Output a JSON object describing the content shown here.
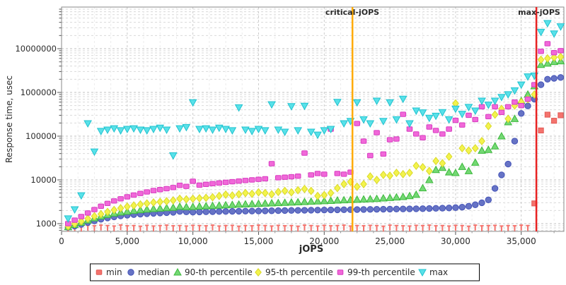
{
  "axes": {
    "x": {
      "label": "jOPS",
      "ticks": [
        "0",
        "5,000",
        "10,000",
        "15,000",
        "20,000",
        "25,000",
        "30,000",
        "35,000"
      ],
      "tick_values": [
        0,
        5000,
        10000,
        15000,
        20000,
        25000,
        30000,
        35000
      ],
      "min": 0,
      "max": 38250
    },
    "y": {
      "label": "Response time, usec",
      "scale": "log",
      "ticks": [
        "1000",
        "10000",
        "100000",
        "1000000",
        "10000000"
      ],
      "tick_values": [
        1000,
        10000,
        100000,
        1000000,
        10000000
      ],
      "min": 700,
      "max": 90000000
    }
  },
  "chart_data": {
    "type": "scatter",
    "title": "",
    "xlabel": "jOPS",
    "ylabel": "Response time, usec",
    "grid": "dashed",
    "legend_position": "bottom",
    "annotations": [
      {
        "label": "critical-jOPS",
        "x": 22150,
        "color": "#ffaa00"
      },
      {
        "label": "max-jOPS",
        "x": 36150,
        "color": "#e82222"
      }
    ],
    "x": [
      500,
      1000,
      1500,
      2000,
      2500,
      3000,
      3500,
      4000,
      4500,
      5000,
      5500,
      6000,
      6500,
      7000,
      7500,
      8000,
      8500,
      9000,
      9500,
      10000,
      10500,
      11000,
      11500,
      12000,
      12500,
      13000,
      13500,
      14000,
      14500,
      15000,
      15500,
      16000,
      16500,
      17000,
      17500,
      18000,
      18500,
      19000,
      19500,
      20000,
      20500,
      21000,
      21500,
      22000,
      22500,
      23000,
      23500,
      24000,
      24500,
      25000,
      25500,
      26000,
      26500,
      27000,
      27500,
      28000,
      28500,
      29000,
      29500,
      30000,
      30500,
      31000,
      31500,
      32000,
      32500,
      33000,
      33500,
      34000,
      34500,
      35000,
      35500,
      36000,
      36500,
      37000,
      37500,
      38000
    ],
    "series": [
      {
        "name": "min",
        "marker": "tee-square",
        "color": "#f4736d",
        "edge": "#e25a55",
        "values": [
          870,
          900,
          880,
          910,
          890,
          920,
          900,
          880,
          930,
          890,
          900,
          870,
          910,
          880,
          900,
          920,
          890,
          900,
          880,
          910,
          900,
          890,
          920,
          880,
          900,
          910,
          870,
          900,
          890,
          920,
          900,
          880,
          910,
          890,
          900,
          870,
          920,
          900,
          880,
          910,
          890,
          900,
          920,
          880,
          900,
          890,
          910,
          900,
          870,
          920,
          900,
          890,
          880,
          910,
          900,
          920,
          890,
          900,
          880,
          910,
          900,
          870,
          920,
          890,
          900,
          910,
          880,
          900,
          890,
          920,
          900,
          2900,
          135000,
          310000,
          225000,
          300000
        ]
      },
      {
        "name": "median",
        "marker": "circle",
        "color": "#6673c5",
        "edge": "#4453b8",
        "values": [
          820,
          880,
          960,
          1060,
          1160,
          1260,
          1350,
          1430,
          1500,
          1560,
          1610,
          1650,
          1690,
          1720,
          1750,
          1780,
          1820,
          1900,
          1860,
          1830,
          1850,
          1870,
          1880,
          1890,
          1900,
          1910,
          1920,
          1930,
          1940,
          1950,
          1960,
          1970,
          1980,
          1990,
          2000,
          2010,
          2020,
          2030,
          2040,
          2050,
          2060,
          2070,
          2080,
          2090,
          2100,
          2110,
          2120,
          2130,
          2140,
          2150,
          2160,
          2170,
          2180,
          2190,
          2200,
          2220,
          2240,
          2260,
          2280,
          2320,
          2380,
          2500,
          2700,
          3000,
          3500,
          6400,
          13000,
          23000,
          77000,
          330000,
          490000,
          700000,
          1500000,
          2000000,
          2100000,
          2200000
        ]
      },
      {
        "name": "90-th percentile",
        "marker": "triangle-up",
        "color": "#74d874",
        "edge": "#3cb93c",
        "values": [
          840,
          940,
          1060,
          1200,
          1340,
          1480,
          1600,
          1720,
          1820,
          1900,
          1980,
          2050,
          2120,
          2180,
          2230,
          2280,
          2330,
          2450,
          2400,
          2430,
          2480,
          2520,
          2560,
          2600,
          2650,
          2700,
          2750,
          2780,
          2820,
          2850,
          2900,
          2940,
          2980,
          3020,
          3060,
          3100,
          3150,
          3200,
          3250,
          3300,
          3350,
          3400,
          3450,
          3500,
          3550,
          3600,
          3650,
          3700,
          3800,
          3900,
          4000,
          4100,
          4300,
          4600,
          6500,
          10000,
          17000,
          19000,
          15000,
          14500,
          20000,
          16000,
          25000,
          47000,
          49000,
          59000,
          100000,
          210000,
          250000,
          640000,
          900000,
          1400000,
          4300000,
          4600000,
          5000000,
          5200000
        ]
      },
      {
        "name": "95-th percentile",
        "marker": "diamond",
        "color": "#f3f34c",
        "edge": "#d9d92a",
        "values": [
          870,
          990,
          1130,
          1300,
          1480,
          1650,
          1850,
          2050,
          2250,
          2450,
          2600,
          2750,
          2900,
          3050,
          3150,
          3250,
          3400,
          3700,
          3600,
          3700,
          3800,
          3900,
          4000,
          4300,
          4600,
          4400,
          4700,
          5000,
          4800,
          5200,
          5000,
          4700,
          5300,
          5600,
          5200,
          5800,
          6200,
          5600,
          4300,
          4500,
          5000,
          6500,
          8000,
          9000,
          7000,
          8000,
          12000,
          10000,
          13000,
          12500,
          14500,
          13500,
          14500,
          21000,
          19500,
          16000,
          27000,
          24000,
          34000,
          560000,
          53000,
          47000,
          53000,
          77000,
          170000,
          310000,
          420000,
          250000,
          500000,
          600000,
          700000,
          900000,
          5600000,
          6000000,
          6300000,
          6500000
        ]
      },
      {
        "name": "99-th percentile",
        "marker": "square",
        "color": "#f168d9",
        "edge": "#d83cc0",
        "values": [
          1000,
          1200,
          1450,
          1750,
          2100,
          2500,
          2900,
          3300,
          3700,
          4100,
          4500,
          4900,
          5300,
          5700,
          6000,
          6300,
          6700,
          7500,
          7100,
          9300,
          7600,
          7900,
          8200,
          8500,
          8800,
          9100,
          9400,
          9700,
          10000,
          10300,
          10600,
          23500,
          11200,
          11500,
          11800,
          12200,
          41000,
          13000,
          14000,
          13500,
          145000,
          14000,
          13500,
          15000,
          195000,
          77000,
          36000,
          120000,
          39000,
          83000,
          86000,
          316000,
          145000,
          112000,
          92000,
          162000,
          135000,
          112000,
          145000,
          230000,
          180000,
          300000,
          240000,
          470000,
          280000,
          470000,
          350000,
          470000,
          600000,
          500000,
          700000,
          1500000,
          8700000,
          13000000,
          8100000,
          9000000
        ]
      },
      {
        "name": "max",
        "marker": "triangle-down",
        "color": "#59e1e9",
        "edge": "#21c3cf",
        "values": [
          1300,
          2100,
          4400,
          195000,
          44000,
          130000,
          140000,
          150000,
          135000,
          145000,
          150000,
          140000,
          135000,
          145000,
          155000,
          140000,
          36000,
          150000,
          160000,
          590000,
          145000,
          150000,
          140000,
          155000,
          145000,
          135000,
          450000,
          140000,
          130000,
          145000,
          135000,
          530000,
          140000,
          125000,
          480000,
          135000,
          490000,
          125000,
          107000,
          135000,
          145000,
          600000,
          195000,
          220000,
          590000,
          240000,
          195000,
          640000,
          220000,
          590000,
          240000,
          710000,
          195000,
          380000,
          345000,
          260000,
          290000,
          350000,
          240000,
          420000,
          320000,
          460000,
          380000,
          640000,
          520000,
          640000,
          780000,
          900000,
          1100000,
          1500000,
          2300000,
          2400000,
          24000000,
          38000000,
          22000000,
          32000000
        ]
      }
    ]
  },
  "legend": {
    "items": [
      "min",
      "median",
      "90-th percentile",
      "95-th percentile",
      "99-th percentile",
      "max"
    ]
  }
}
